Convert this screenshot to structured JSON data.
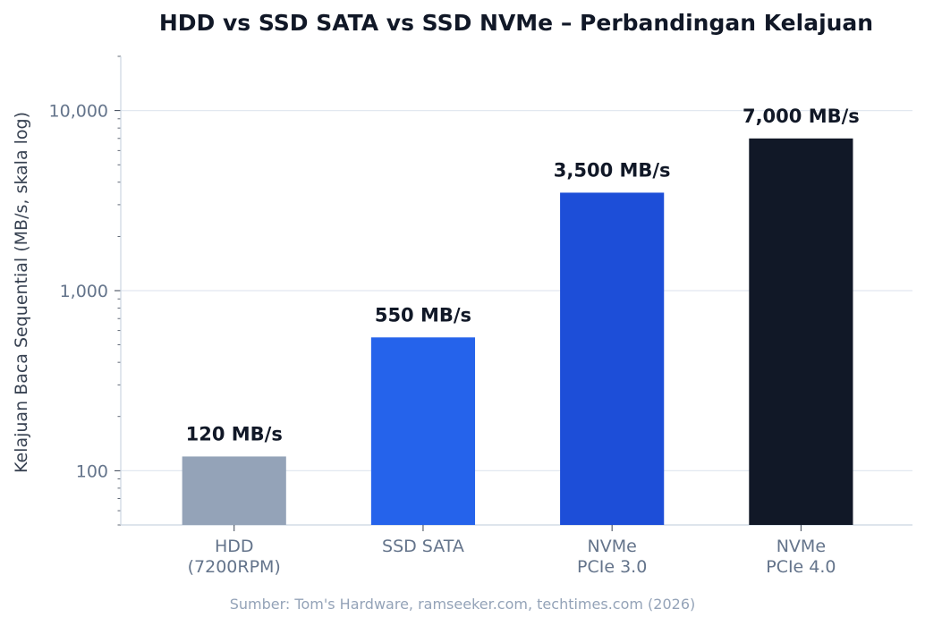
{
  "chart_data": {
    "type": "bar",
    "title": "HDD vs SSD SATA vs SSD NVMe – Perbandingan Kelajuan",
    "xlabel": "",
    "ylabel": "Kelajuan Baca Sequential (MB/s, skala log)",
    "yscale": "log",
    "ylim": [
      50,
      20000
    ],
    "yticks": [
      100,
      1000,
      10000
    ],
    "ytick_labels": [
      "100",
      "1,000",
      "10,000"
    ],
    "grid": true,
    "categories": [
      [
        "HDD",
        "(7200RPM)"
      ],
      [
        "SSD SATA"
      ],
      [
        "NVMe",
        "PCIe 3.0"
      ],
      [
        "NVMe",
        "PCIe 4.0"
      ]
    ],
    "values": [
      120,
      550,
      3500,
      7000
    ],
    "data_labels": [
      "120 MB/s",
      "550 MB/s",
      "3,500 MB/s",
      "7,000 MB/s"
    ],
    "colors": [
      "#94a3b8",
      "#2563eb",
      "#1d4ed8",
      "#111827"
    ],
    "source": "Sumber: Tom's Hardware, ramseeker.com, techtimes.com (2026)"
  }
}
